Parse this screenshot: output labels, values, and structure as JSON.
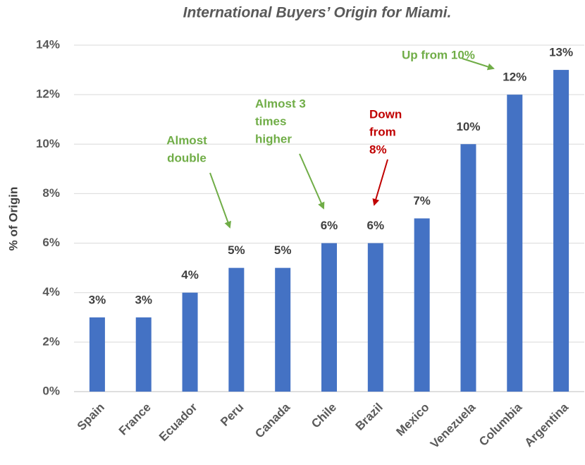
{
  "chart_data": {
    "type": "bar",
    "title": "International Buyers’ Origin for Miami.",
    "y_label": "% of Origin",
    "categories": [
      "Spain",
      "France",
      "Ecuador",
      "Peru",
      "Canada",
      "Chile",
      "Brazil",
      "Mexico",
      "Venezuela",
      "Columbia",
      "Argentina"
    ],
    "values": [
      3,
      3,
      4,
      5,
      5,
      6,
      6,
      7,
      10,
      12,
      13
    ],
    "value_labels": [
      "3%",
      "3%",
      "4%",
      "5%",
      "5%",
      "6%",
      "6%",
      "7%",
      "10%",
      "12%",
      "13%"
    ],
    "color": "#4472c4",
    "ylim": [
      0,
      14
    ],
    "yticks": [
      {
        "value": 0,
        "label": "0%"
      },
      {
        "value": 2,
        "label": "2%"
      },
      {
        "value": 4,
        "label": "4%"
      },
      {
        "value": 6,
        "label": "6%"
      },
      {
        "value": 8,
        "label": "8%"
      },
      {
        "value": 10,
        "label": "10%"
      },
      {
        "value": 12,
        "label": "12%"
      },
      {
        "value": 14,
        "label": "14%"
      }
    ],
    "grid": true,
    "annotations": [
      {
        "lines": [
          "Almost",
          "double"
        ],
        "color": "#70ad47"
      },
      {
        "lines": [
          "Almost 3",
          "times",
          "higher"
        ],
        "color": "#70ad47"
      },
      {
        "lines": [
          "Down",
          "from",
          "8%"
        ],
        "color": "#c00000"
      },
      {
        "lines": [
          "Up from 10%"
        ],
        "color": "#70ad47"
      }
    ]
  }
}
